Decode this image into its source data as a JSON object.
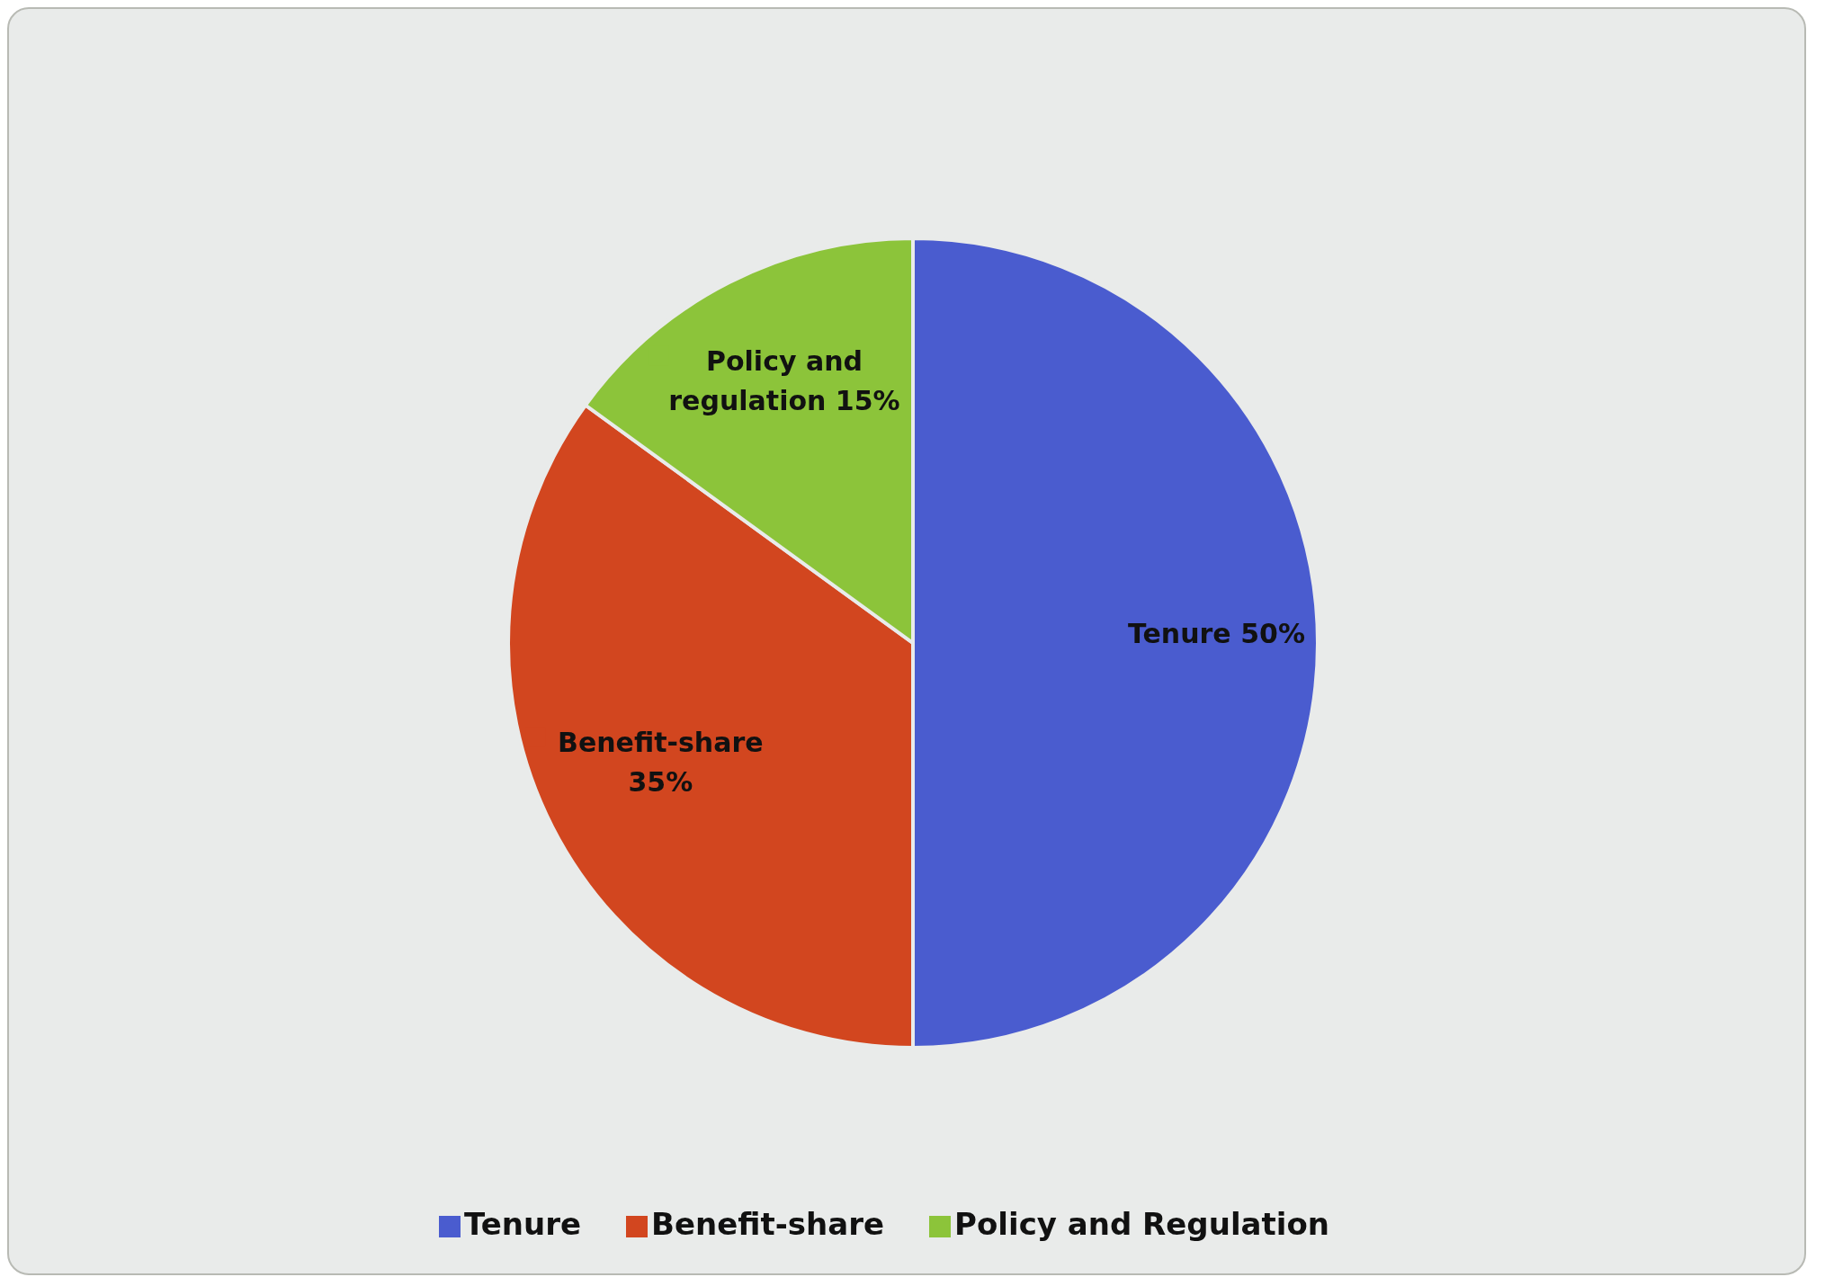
{
  "chart_data": {
    "type": "pie",
    "categories": [
      "Tenure",
      "Benefit-share",
      "Policy and Regulation"
    ],
    "values": [
      50,
      35,
      15
    ],
    "colors": [
      "#4a5ccf",
      "#d2461f",
      "#8cc43a"
    ],
    "value_labels": [
      "Tenure 50%",
      "Benefit-share 35%",
      "Policy and regulation 15%"
    ],
    "legend": "bottom"
  }
}
